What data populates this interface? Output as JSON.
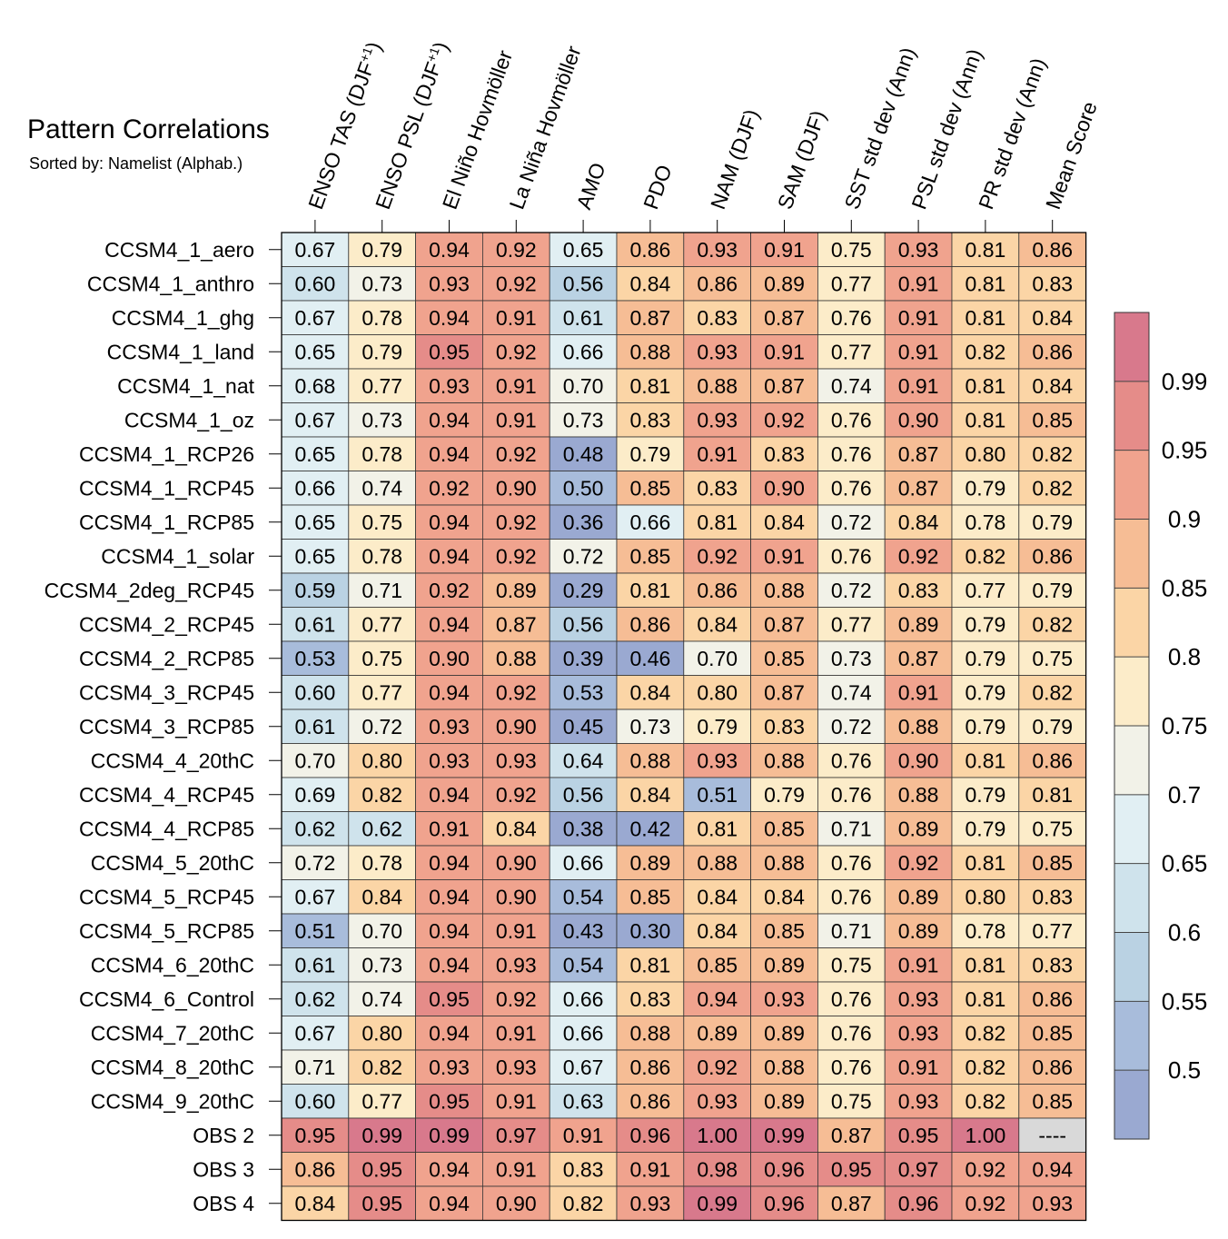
{
  "chart_data": {
    "type": "heatmap",
    "title": "Pattern Correlations",
    "subtitle": "Sorted by: Namelist (Alphab.)",
    "columns": [
      {
        "base": "ENSO TAS (DJF",
        "sup": "+1",
        "tail": ")"
      },
      {
        "base": "ENSO PSL (DJF",
        "sup": "+1",
        "tail": ")"
      },
      {
        "base": "El Niño Hovmöller"
      },
      {
        "base": "La Niña Hovmöller"
      },
      {
        "base": "AMO"
      },
      {
        "base": "PDO"
      },
      {
        "base": "NAM (DJF)"
      },
      {
        "base": "SAM (DJF)"
      },
      {
        "base": "SST std dev (Ann)"
      },
      {
        "base": "PSL std dev (Ann)"
      },
      {
        "base": "PR std dev (Ann)"
      },
      {
        "base": "Mean Score"
      }
    ],
    "rows": [
      "CCSM4_1_aero",
      "CCSM4_1_anthro",
      "CCSM4_1_ghg",
      "CCSM4_1_land",
      "CCSM4_1_nat",
      "CCSM4_1_oz",
      "CCSM4_1_RCP26",
      "CCSM4_1_RCP45",
      "CCSM4_1_RCP85",
      "CCSM4_1_solar",
      "CCSM4_2deg_RCP45",
      "CCSM4_2_RCP45",
      "CCSM4_2_RCP85",
      "CCSM4_3_RCP45",
      "CCSM4_3_RCP85",
      "CCSM4_4_20thC",
      "CCSM4_4_RCP45",
      "CCSM4_4_RCP85",
      "CCSM4_5_20thC",
      "CCSM4_5_RCP45",
      "CCSM4_5_RCP85",
      "CCSM4_6_20thC",
      "CCSM4_6_Control",
      "CCSM4_7_20thC",
      "CCSM4_8_20thC",
      "CCSM4_9_20thC",
      "OBS 2",
      "OBS 3",
      "OBS 4"
    ],
    "values": [
      [
        "0.67",
        "0.79",
        "0.94",
        "0.92",
        "0.65",
        "0.86",
        "0.93",
        "0.91",
        "0.75",
        "0.93",
        "0.81",
        "0.86"
      ],
      [
        "0.60",
        "0.73",
        "0.93",
        "0.92",
        "0.56",
        "0.84",
        "0.86",
        "0.89",
        "0.77",
        "0.91",
        "0.81",
        "0.83"
      ],
      [
        "0.67",
        "0.78",
        "0.94",
        "0.91",
        "0.61",
        "0.87",
        "0.83",
        "0.87",
        "0.76",
        "0.91",
        "0.81",
        "0.84"
      ],
      [
        "0.65",
        "0.79",
        "0.95",
        "0.92",
        "0.66",
        "0.88",
        "0.93",
        "0.91",
        "0.77",
        "0.91",
        "0.82",
        "0.86"
      ],
      [
        "0.68",
        "0.77",
        "0.93",
        "0.91",
        "0.70",
        "0.81",
        "0.88",
        "0.87",
        "0.74",
        "0.91",
        "0.81",
        "0.84"
      ],
      [
        "0.67",
        "0.73",
        "0.94",
        "0.91",
        "0.73",
        "0.83",
        "0.93",
        "0.92",
        "0.76",
        "0.90",
        "0.81",
        "0.85"
      ],
      [
        "0.65",
        "0.78",
        "0.94",
        "0.92",
        "0.48",
        "0.79",
        "0.91",
        "0.83",
        "0.76",
        "0.87",
        "0.80",
        "0.82"
      ],
      [
        "0.66",
        "0.74",
        "0.92",
        "0.90",
        "0.50",
        "0.85",
        "0.83",
        "0.90",
        "0.76",
        "0.87",
        "0.79",
        "0.82"
      ],
      [
        "0.65",
        "0.75",
        "0.94",
        "0.92",
        "0.36",
        "0.66",
        "0.81",
        "0.84",
        "0.72",
        "0.84",
        "0.78",
        "0.79"
      ],
      [
        "0.65",
        "0.78",
        "0.94",
        "0.92",
        "0.72",
        "0.85",
        "0.92",
        "0.91",
        "0.76",
        "0.92",
        "0.82",
        "0.86"
      ],
      [
        "0.59",
        "0.71",
        "0.92",
        "0.89",
        "0.29",
        "0.81",
        "0.86",
        "0.88",
        "0.72",
        "0.83",
        "0.77",
        "0.79"
      ],
      [
        "0.61",
        "0.77",
        "0.94",
        "0.87",
        "0.56",
        "0.86",
        "0.84",
        "0.87",
        "0.77",
        "0.89",
        "0.79",
        "0.82"
      ],
      [
        "0.53",
        "0.75",
        "0.90",
        "0.88",
        "0.39",
        "0.46",
        "0.70",
        "0.85",
        "0.73",
        "0.87",
        "0.79",
        "0.75"
      ],
      [
        "0.60",
        "0.77",
        "0.94",
        "0.92",
        "0.53",
        "0.84",
        "0.80",
        "0.87",
        "0.74",
        "0.91",
        "0.79",
        "0.82"
      ],
      [
        "0.61",
        "0.72",
        "0.93",
        "0.90",
        "0.45",
        "0.73",
        "0.79",
        "0.83",
        "0.72",
        "0.88",
        "0.79",
        "0.79"
      ],
      [
        "0.70",
        "0.80",
        "0.93",
        "0.93",
        "0.64",
        "0.88",
        "0.93",
        "0.88",
        "0.76",
        "0.90",
        "0.81",
        "0.86"
      ],
      [
        "0.69",
        "0.82",
        "0.94",
        "0.92",
        "0.56",
        "0.84",
        "0.51",
        "0.79",
        "0.76",
        "0.88",
        "0.79",
        "0.81"
      ],
      [
        "0.62",
        "0.62",
        "0.91",
        "0.84",
        "0.38",
        "0.42",
        "0.81",
        "0.85",
        "0.71",
        "0.89",
        "0.79",
        "0.75"
      ],
      [
        "0.72",
        "0.78",
        "0.94",
        "0.90",
        "0.66",
        "0.89",
        "0.88",
        "0.88",
        "0.76",
        "0.92",
        "0.81",
        "0.85"
      ],
      [
        "0.67",
        "0.84",
        "0.94",
        "0.90",
        "0.54",
        "0.85",
        "0.84",
        "0.84",
        "0.76",
        "0.89",
        "0.80",
        "0.83"
      ],
      [
        "0.51",
        "0.70",
        "0.94",
        "0.91",
        "0.43",
        "0.30",
        "0.84",
        "0.85",
        "0.71",
        "0.89",
        "0.78",
        "0.77"
      ],
      [
        "0.61",
        "0.73",
        "0.94",
        "0.93",
        "0.54",
        "0.81",
        "0.85",
        "0.89",
        "0.75",
        "0.91",
        "0.81",
        "0.83"
      ],
      [
        "0.62",
        "0.74",
        "0.95",
        "0.92",
        "0.66",
        "0.83",
        "0.94",
        "0.93",
        "0.76",
        "0.93",
        "0.81",
        "0.86"
      ],
      [
        "0.67",
        "0.80",
        "0.94",
        "0.91",
        "0.66",
        "0.88",
        "0.89",
        "0.89",
        "0.76",
        "0.93",
        "0.82",
        "0.85"
      ],
      [
        "0.71",
        "0.82",
        "0.93",
        "0.93",
        "0.67",
        "0.86",
        "0.92",
        "0.88",
        "0.76",
        "0.91",
        "0.82",
        "0.86"
      ],
      [
        "0.60",
        "0.77",
        "0.95",
        "0.91",
        "0.63",
        "0.86",
        "0.93",
        "0.89",
        "0.75",
        "0.93",
        "0.82",
        "0.85"
      ],
      [
        "0.95",
        "0.99",
        "0.99",
        "0.97",
        "0.91",
        "0.96",
        "1.00",
        "0.99",
        "0.87",
        "0.95",
        "1.00",
        "----"
      ],
      [
        "0.86",
        "0.95",
        "0.94",
        "0.91",
        "0.83",
        "0.91",
        "0.98",
        "0.96",
        "0.95",
        "0.97",
        "0.92",
        "0.94"
      ],
      [
        "0.84",
        "0.95",
        "0.94",
        "0.90",
        "0.82",
        "0.93",
        "0.99",
        "0.96",
        "0.87",
        "0.96",
        "0.92",
        "0.93"
      ]
    ],
    "colorbar": {
      "levels": [
        0.5,
        0.55,
        0.6,
        0.65,
        0.7,
        0.75,
        0.8,
        0.85,
        0.9,
        0.95,
        0.99
      ],
      "tick_labels": [
        "0.5",
        "0.55",
        "0.6",
        "0.65",
        "0.7",
        "0.75",
        "0.8",
        "0.85",
        "0.9",
        "0.95",
        "0.99"
      ],
      "colors": [
        "#9aa9d1",
        "#a8bcdb",
        "#bad2e3",
        "#cfe3ec",
        "#e1eff3",
        "#f2f2e8",
        "#fcecc9",
        "#fbd5a6",
        "#f6bd95",
        "#f0a38e",
        "#e58c89",
        "#d8798c"
      ],
      "missing_color": "#d9d9d9"
    }
  }
}
